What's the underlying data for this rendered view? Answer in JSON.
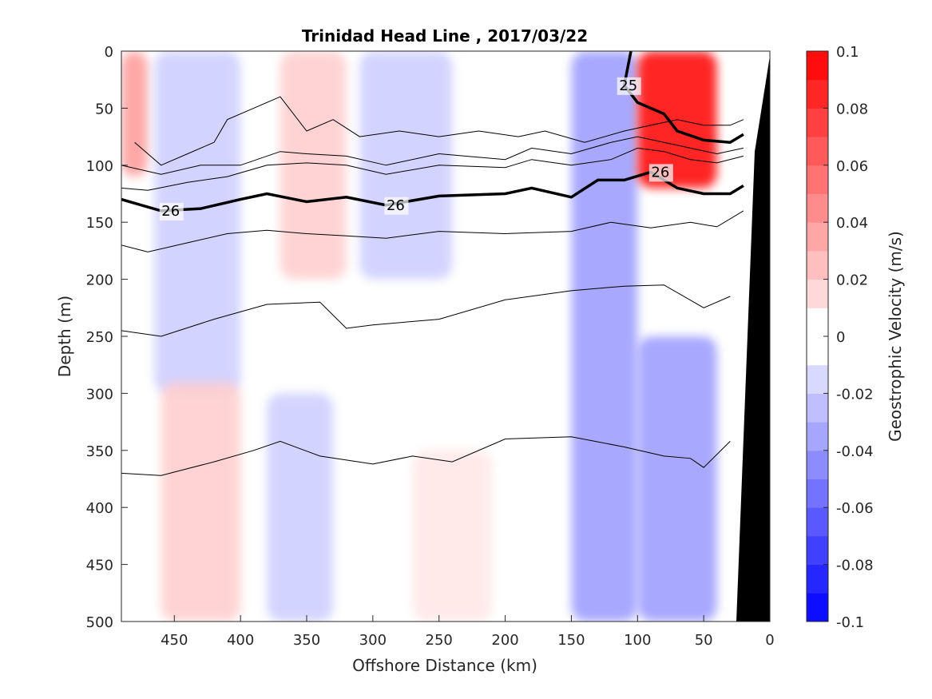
{
  "chart_data": {
    "type": "contour",
    "title": "Trinidad Head Line , 2017/03/22",
    "xlabel": "Offshore Distance (km)",
    "ylabel": "Depth (m)",
    "xlim": [
      490,
      0
    ],
    "ylim": [
      0,
      500
    ],
    "y_reversed": true,
    "x_reversed": true,
    "xticks": [
      450,
      400,
      350,
      300,
      250,
      200,
      150,
      100,
      50,
      0
    ],
    "yticks": [
      0,
      50,
      100,
      150,
      200,
      250,
      300,
      350,
      400,
      450,
      500
    ],
    "colorbar": {
      "label": "Geostrophic Velocity (m/s)",
      "range": [
        -0.1,
        0.1
      ],
      "ticks": [
        "0.1",
        "0.08",
        "0.06",
        "0.04",
        "0.02",
        "0",
        "-0.02",
        "-0.04",
        "-0.06",
        "-0.08",
        "-0.1"
      ],
      "levels": [
        -0.1,
        -0.09,
        -0.08,
        -0.07,
        -0.06,
        -0.05,
        -0.04,
        -0.03,
        -0.02,
        -0.01,
        0,
        0.01,
        0.02,
        0.03,
        0.04,
        0.05,
        0.06,
        0.07,
        0.08,
        0.09,
        0.1
      ]
    },
    "velocity_features": [
      {
        "type": "pos",
        "x": [
          490,
          470
        ],
        "y": [
          0,
          110
        ],
        "level": 0.04
      },
      {
        "type": "neg",
        "x": [
          465,
          400
        ],
        "y": [
          0,
          300
        ],
        "level": -0.02
      },
      {
        "type": "pos",
        "x": [
          370,
          320
        ],
        "y": [
          0,
          200
        ],
        "level": 0.02
      },
      {
        "type": "neg",
        "x": [
          310,
          240
        ],
        "y": [
          0,
          200
        ],
        "level": -0.02
      },
      {
        "type": "neg",
        "x": [
          150,
          100
        ],
        "y": [
          0,
          500
        ],
        "level": -0.04
      },
      {
        "type": "pos",
        "x": [
          100,
          40
        ],
        "y": [
          0,
          120
        ],
        "level": 0.1
      },
      {
        "type": "neg",
        "x": [
          100,
          40
        ],
        "y": [
          250,
          500
        ],
        "level": -0.04
      },
      {
        "type": "pos",
        "x": [
          460,
          400
        ],
        "y": [
          290,
          500
        ],
        "level": 0.02
      },
      {
        "type": "neg",
        "x": [
          380,
          330
        ],
        "y": [
          300,
          500
        ],
        "level": -0.02
      },
      {
        "type": "pos",
        "x": [
          270,
          210
        ],
        "y": [
          350,
          500
        ],
        "level": 0.01
      }
    ],
    "isopycnals": [
      {
        "label": "",
        "bold": false,
        "x": [
          490,
          470,
          440,
          410,
          380,
          350,
          320,
          290,
          250,
          200,
          150,
          120,
          90,
          60,
          40,
          20
        ],
        "y": [
          170,
          176,
          168,
          160,
          157,
          160,
          162,
          164,
          158,
          160,
          158,
          150,
          155,
          150,
          154,
          140
        ]
      },
      {
        "label": "",
        "bold": false,
        "x": [
          490,
          460,
          420,
          380,
          340,
          320,
          300,
          250,
          200,
          150,
          110,
          80,
          50,
          30
        ],
        "y": [
          245,
          250,
          235,
          222,
          220,
          243,
          240,
          235,
          218,
          210,
          206,
          205,
          225,
          215
        ]
      },
      {
        "label": "",
        "bold": false,
        "x": [
          490,
          460,
          420,
          390,
          370,
          340,
          300,
          270,
          240,
          200,
          150,
          110,
          80,
          60,
          50,
          30
        ],
        "y": [
          370,
          372,
          360,
          350,
          342,
          355,
          362,
          355,
          360,
          340,
          338,
          347,
          355,
          357,
          365,
          342
        ]
      },
      {
        "label": "26",
        "bold": true,
        "x": [
          490,
          460,
          430,
          400,
          380,
          350,
          320,
          290,
          250,
          200,
          180,
          150,
          130,
          110,
          90,
          70,
          50,
          30,
          20
        ],
        "y": [
          130,
          140,
          138,
          130,
          125,
          132,
          128,
          135,
          127,
          125,
          120,
          128,
          113,
          113,
          106,
          120,
          125,
          125,
          118
        ]
      },
      {
        "label": "25",
        "bold": true,
        "x": [
          105,
          110,
          100,
          80,
          70,
          50,
          30,
          20
        ],
        "y": [
          0,
          30,
          45,
          55,
          70,
          78,
          80,
          73
        ]
      },
      {
        "label": "",
        "bold": false,
        "x": [
          490,
          470,
          440,
          410,
          380,
          350,
          320,
          290,
          250,
          200,
          180,
          150,
          120,
          100,
          80,
          60,
          40,
          20
        ],
        "y": [
          120,
          122,
          115,
          110,
          100,
          98,
          100,
          108,
          100,
          102,
          95,
          100,
          95,
          85,
          88,
          95,
          98,
          92
        ]
      },
      {
        "label": "",
        "bold": false,
        "x": [
          490,
          460,
          430,
          400,
          370,
          350,
          320,
          290,
          250,
          200,
          180,
          150,
          120,
          100,
          80,
          60,
          40,
          20
        ],
        "y": [
          100,
          108,
          100,
          100,
          88,
          90,
          92,
          100,
          90,
          95,
          85,
          90,
          80,
          75,
          80,
          85,
          90,
          85
        ]
      },
      {
        "label": "",
        "bold": false,
        "x": [
          480,
          460,
          440,
          420,
          410,
          390,
          370,
          350,
          330,
          310,
          280,
          250,
          220,
          190,
          170,
          140,
          110,
          90,
          70,
          50,
          30,
          20
        ],
        "y": [
          80,
          100,
          90,
          80,
          60,
          50,
          40,
          70,
          60,
          75,
          70,
          75,
          70,
          75,
          70,
          80,
          70,
          65,
          60,
          65,
          65,
          60
        ]
      }
    ]
  }
}
